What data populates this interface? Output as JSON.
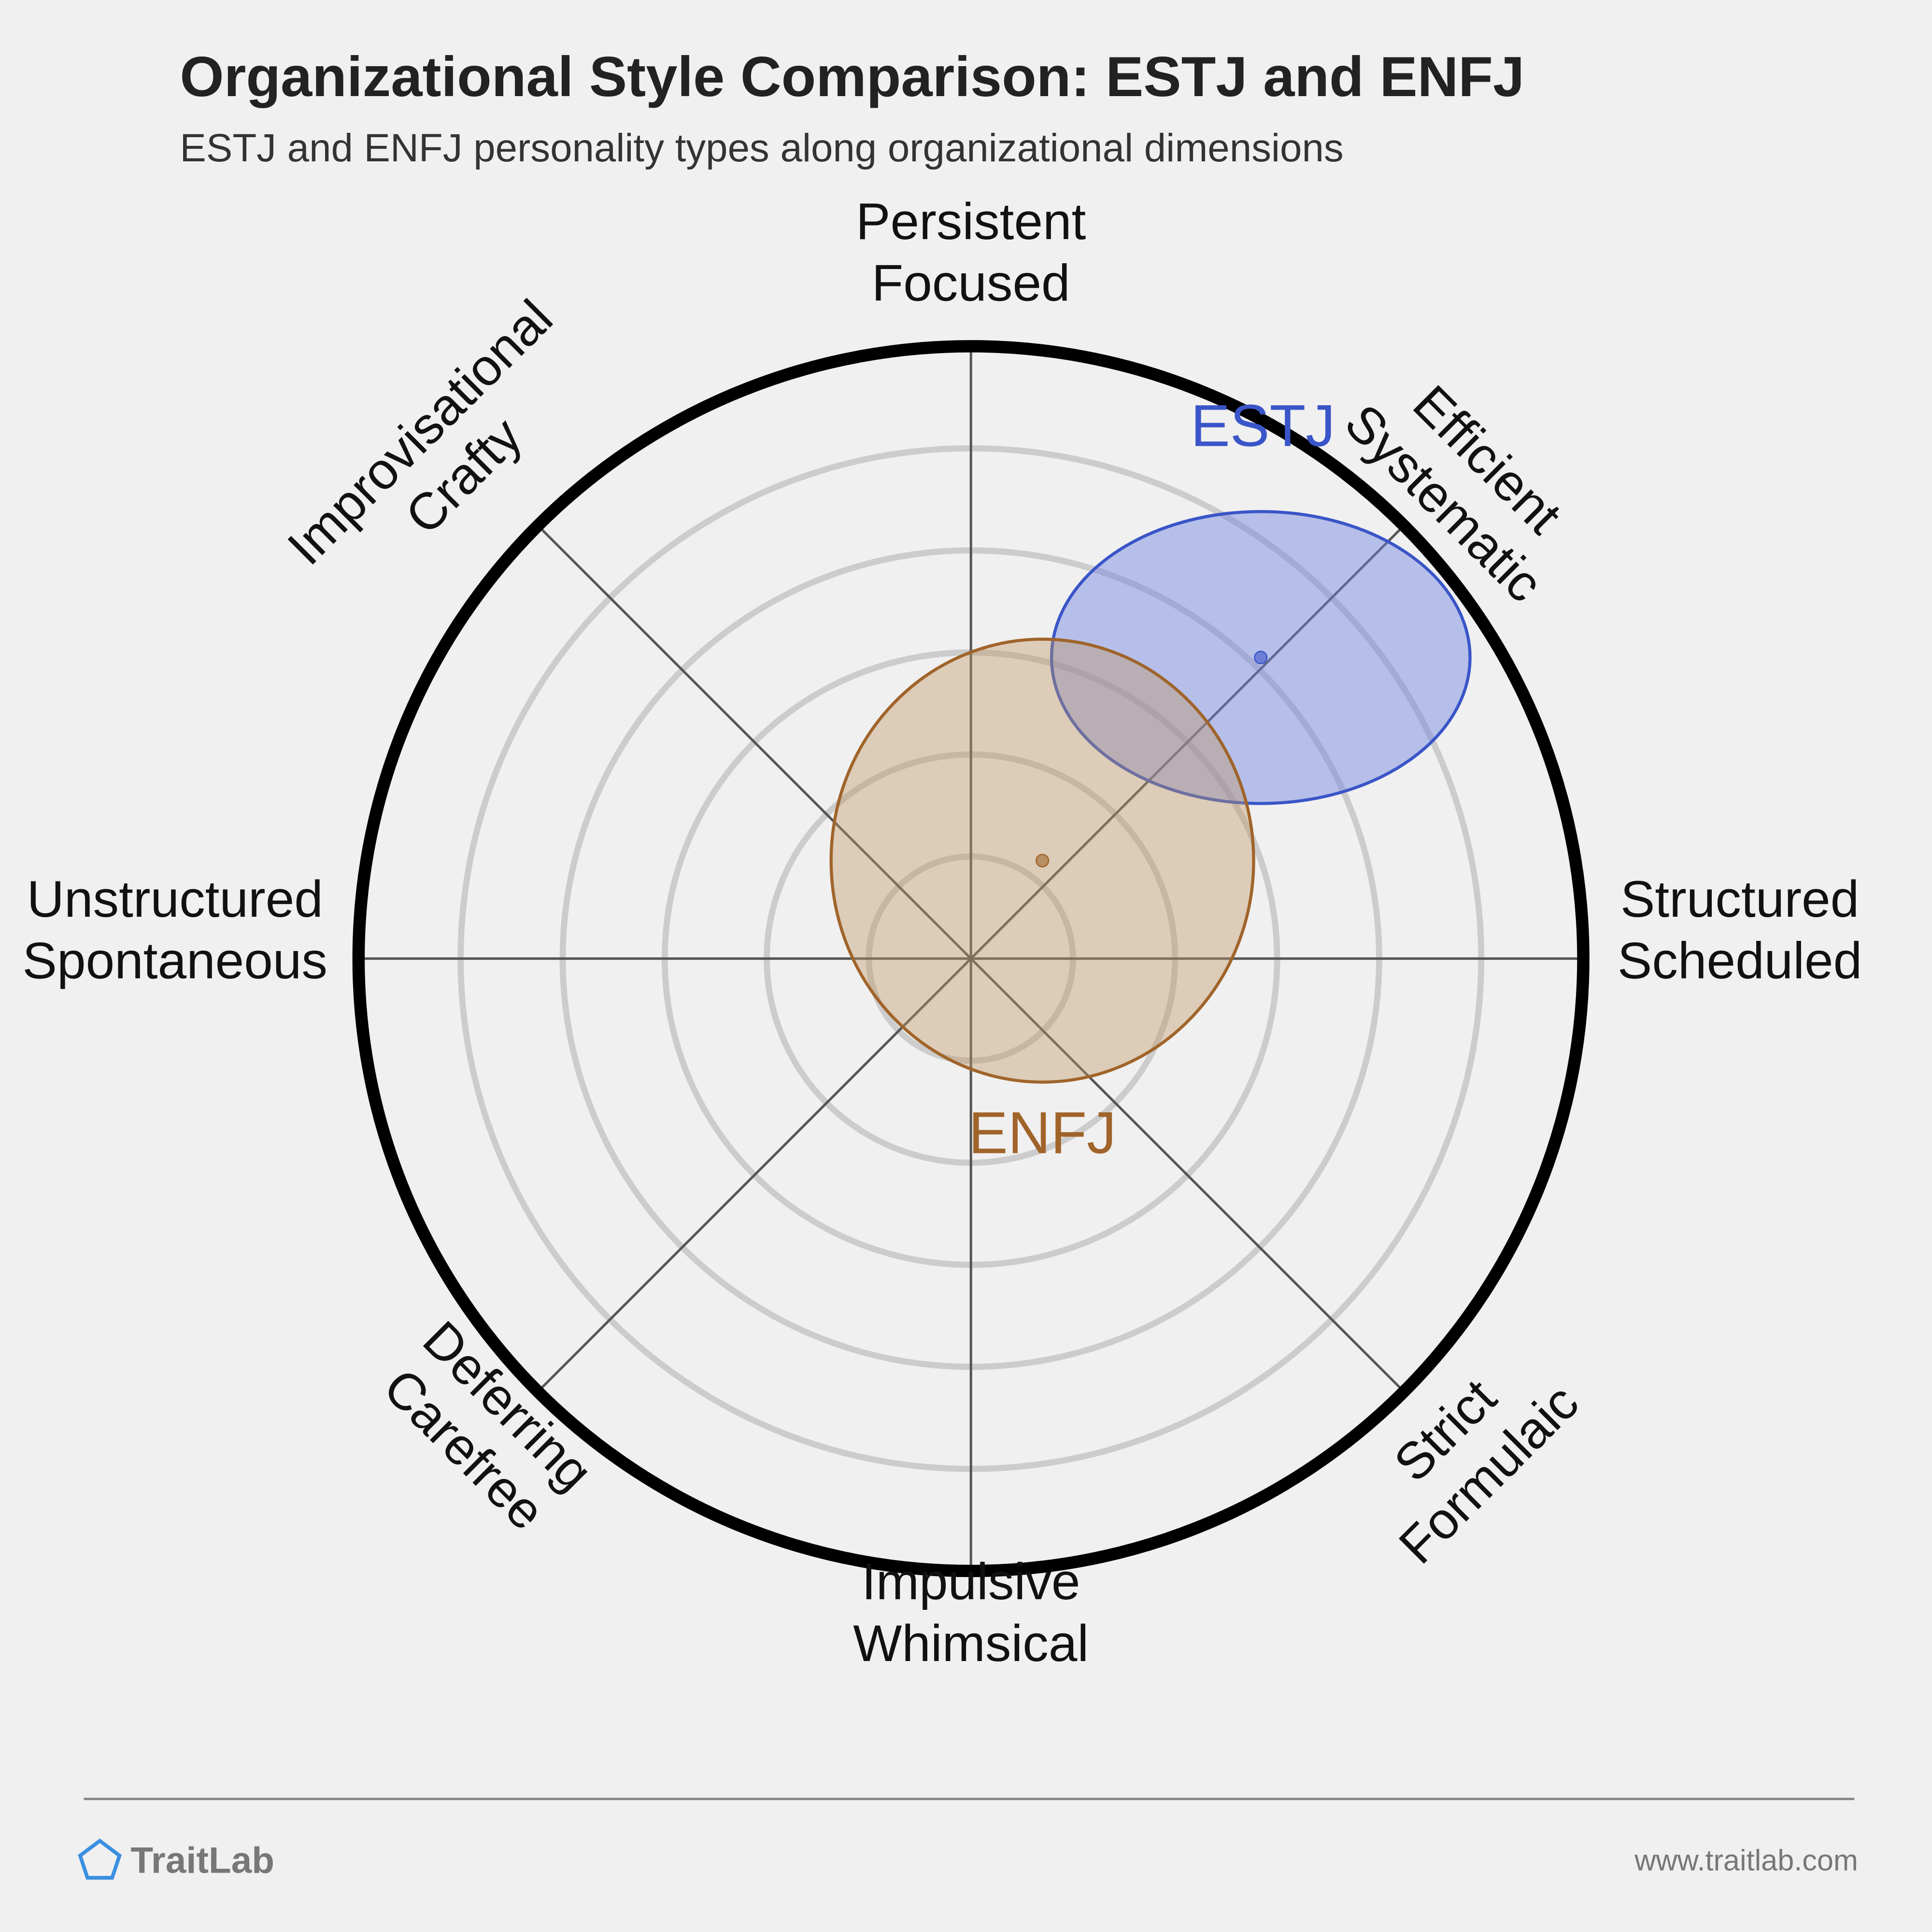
{
  "chart_data": {
    "type": "scatter",
    "title": "Organizational Style Comparison: ESTJ and ENFJ",
    "subtitle": "ESTJ and ENFJ personality types along organizational dimensions",
    "xlim": [
      -6,
      6
    ],
    "ylim": [
      -6,
      6
    ],
    "rings": [
      1,
      2,
      3,
      4,
      5
    ],
    "axis_labels": [
      [
        "Persistent",
        "Focused"
      ],
      [
        "Efficient",
        "Systematic"
      ],
      [
        "Structured",
        "Scheduled"
      ],
      [
        "Strict",
        "Formulaic"
      ],
      [
        "Impulsive",
        "Whimsical"
      ],
      [
        "Deferring",
        "Carefree"
      ],
      [
        "Unstructured",
        "Spontaneous"
      ],
      [
        "Improvisational",
        "Crafty"
      ]
    ],
    "series": [
      {
        "name": "ESTJ",
        "color": "#3a55c8",
        "x": [
          2.84
        ],
        "values": [
          2.95
        ],
        "rx": [
          2.05
        ],
        "ry": [
          1.43
        ]
      },
      {
        "name": "ENFJ",
        "color": "#a0642a",
        "x": [
          0.7
        ],
        "values": [
          0.96
        ],
        "rx": [
          2.07
        ],
        "ry": [
          2.17
        ]
      }
    ],
    "footer": {
      "brand": "TraitLab",
      "url": "www.traitlab.com"
    }
  }
}
